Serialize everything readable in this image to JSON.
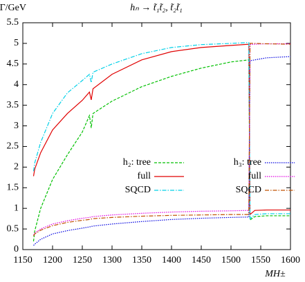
{
  "chart_data": {
    "type": "line",
    "title": "hₙ → t̃₁t̃₂, t̃₂t̃₁",
    "y_label": "Γ/GeV",
    "x_label": "MH±",
    "x": [
      1168,
      1170,
      1180,
      1200,
      1225,
      1250,
      1262,
      1265,
      1268,
      1300,
      1350,
      1400,
      1450,
      1500,
      1530,
      1532,
      1540,
      1560,
      1600
    ],
    "series": [
      {
        "name": "h₂: tree",
        "color": "#00c000",
        "style": "dashed",
        "values": [
          0.2,
          0.45,
          1.0,
          1.7,
          2.3,
          2.85,
          3.25,
          2.95,
          3.3,
          3.6,
          3.95,
          4.2,
          4.4,
          4.55,
          4.6,
          0.72,
          0.8,
          0.82,
          0.82
        ]
      },
      {
        "name": "full",
        "color": "#e00000",
        "style": "solid",
        "values": [
          1.78,
          1.95,
          2.35,
          2.9,
          3.3,
          3.62,
          3.82,
          3.63,
          3.9,
          4.25,
          4.6,
          4.8,
          4.9,
          4.95,
          4.98,
          0.85,
          0.95,
          0.96,
          0.96
        ]
      },
      {
        "name": "SQCD",
        "color": "#00d0e8",
        "style": "dashdot",
        "values": [
          1.9,
          2.1,
          2.6,
          3.3,
          3.8,
          4.1,
          4.25,
          4.05,
          4.3,
          4.5,
          4.75,
          4.9,
          4.97,
          5.0,
          5.02,
          0.75,
          0.85,
          0.87,
          0.87
        ]
      },
      {
        "name": "h₃: tree",
        "color": "#0000e0",
        "style": "dotted",
        "values": [
          0.1,
          0.13,
          0.25,
          0.38,
          0.46,
          0.52,
          0.55,
          0.56,
          0.57,
          0.62,
          0.68,
          0.73,
          0.76,
          0.78,
          0.79,
          4.58,
          4.6,
          4.65,
          4.68
        ]
      },
      {
        "name": "full",
        "color": "#e000e0",
        "style": "dotted",
        "values": [
          0.35,
          0.4,
          0.5,
          0.62,
          0.7,
          0.76,
          0.78,
          0.79,
          0.8,
          0.84,
          0.88,
          0.91,
          0.93,
          0.94,
          0.95,
          4.97,
          4.98,
          4.99,
          4.99
        ]
      },
      {
        "name": "SQCD",
        "color": "#c05000",
        "style": "dashdot",
        "values": [
          0.33,
          0.38,
          0.47,
          0.58,
          0.66,
          0.71,
          0.73,
          0.74,
          0.75,
          0.78,
          0.81,
          0.83,
          0.84,
          0.85,
          0.85,
          5.0,
          5.0,
          4.99,
          4.98
        ]
      }
    ],
    "xlim": [
      1150,
      1600
    ],
    "ylim": [
      0,
      5.5
    ],
    "xticks": [
      1150,
      1200,
      1250,
      1300,
      1350,
      1400,
      1450,
      1500,
      1550,
      1600
    ],
    "yticks": [
      0,
      0.5,
      1,
      1.5,
      2,
      2.5,
      3,
      3.5,
      4,
      4.5,
      5,
      5.5
    ],
    "grid": false
  }
}
